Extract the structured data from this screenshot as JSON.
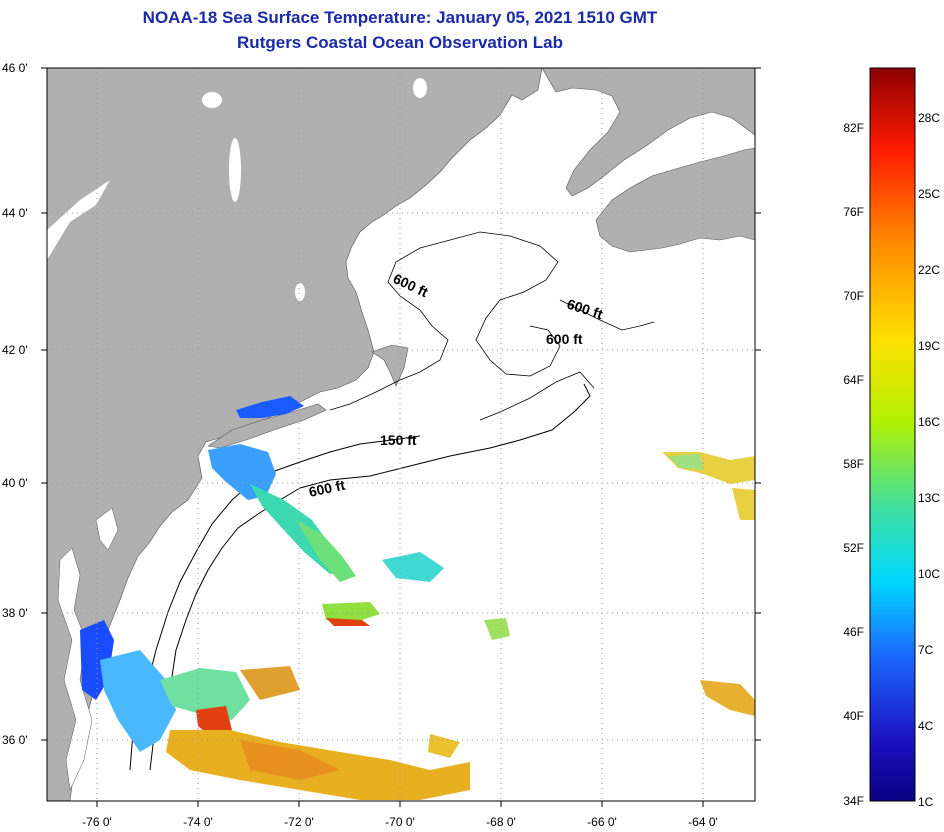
{
  "header": {
    "title": "NOAA-18 Sea Surface Temperature:  January 05, 2021 1510 GMT",
    "subtitle": "Rutgers Coastal Ocean Observation Lab"
  },
  "map": {
    "lat_labels": [
      "46 0'",
      "44 0'",
      "42 0'",
      "40 0'",
      "38 0'",
      "36 0'"
    ],
    "lon_labels": [
      "-76 0'",
      "-74 0'",
      "-72 0'",
      "-70 0'",
      "-68 0'",
      "-66 0'",
      "-64 0'"
    ],
    "contours": {
      "c600_gulf_west": "600 ft",
      "c600_gulf_east": "600 ft",
      "c600_georges": "600 ft",
      "c150": "150 ft",
      "c600_shelf": "600 ft"
    },
    "colors": {
      "land": "#b0b0b0",
      "ocean": "#ffffff",
      "title": "#1a2aa8"
    }
  },
  "colorbar": {
    "f_labels": [
      "82F",
      "76F",
      "70F",
      "64F",
      "58F",
      "52F",
      "46F",
      "40F",
      "34F"
    ],
    "c_labels": [
      "28C",
      "25C",
      "22C",
      "19C",
      "16C",
      "13C",
      "10C",
      "7C",
      "4C",
      "1C"
    ],
    "gradient": [
      "#8b0000",
      "#ff1a00",
      "#ff8c00",
      "#ffe000",
      "#b4f000",
      "#40e0a0",
      "#00d8ff",
      "#1a6aff",
      "#1a10c0",
      "#0a0080"
    ]
  }
}
